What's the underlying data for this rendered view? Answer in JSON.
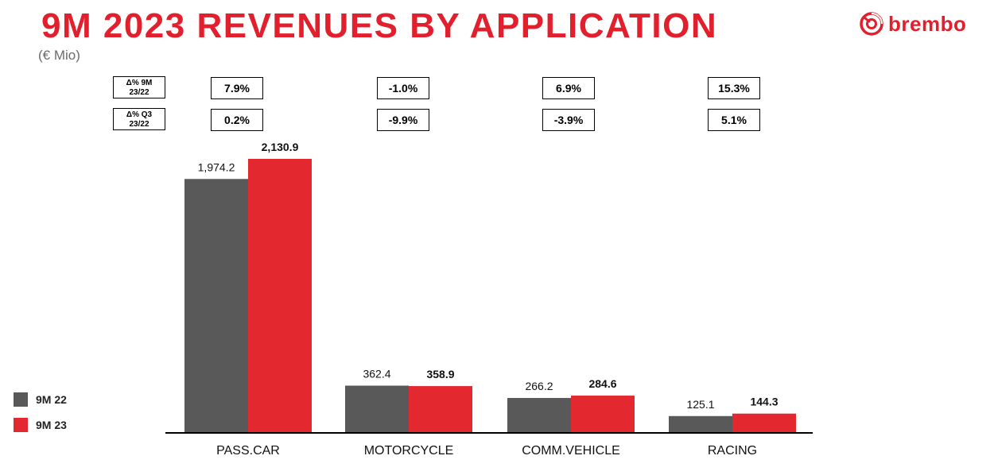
{
  "header": {
    "title": "9M 2023 REVENUES BY APPLICATION",
    "subtitle": "(€ Mio)",
    "logo_text": "brembo",
    "logo_icon": "brembo-disc-logo",
    "accent": "#e21f2c"
  },
  "delta_table": {
    "row_labels": [
      [
        "Δ% 9M",
        "23/22"
      ],
      [
        "Δ% Q3",
        "23/22"
      ]
    ],
    "rows": [
      [
        "7.9%",
        "-1.0%",
        "6.9%",
        "15.3%"
      ],
      [
        "0.2%",
        "-9.9%",
        "-3.9%",
        "5.1%"
      ]
    ]
  },
  "chart_data": {
    "type": "bar",
    "categories": [
      "PASS.CAR",
      "MOTORCYCLE",
      "COMM.VEHICLE",
      "RACING"
    ],
    "series": [
      {
        "name": "9M 22",
        "values": [
          1974.2,
          362.4,
          266.2,
          125.1
        ],
        "labels": [
          "1,974.2",
          "362.4",
          "266.2",
          "125.1"
        ],
        "color": "#595959"
      },
      {
        "name": "9M 23",
        "values": [
          2130.9,
          358.9,
          284.6,
          144.3
        ],
        "labels": [
          "2,130.9",
          "358.9",
          "284.6",
          "144.3"
        ],
        "color": "#e3282f"
      }
    ],
    "ylim": [
      0,
      2130.9
    ],
    "title": "9M 2023 REVENUES BY APPLICATION",
    "ylabel": "(€ Mio)",
    "xlabel": "",
    "legend": "bottom-left",
    "grid": false
  }
}
